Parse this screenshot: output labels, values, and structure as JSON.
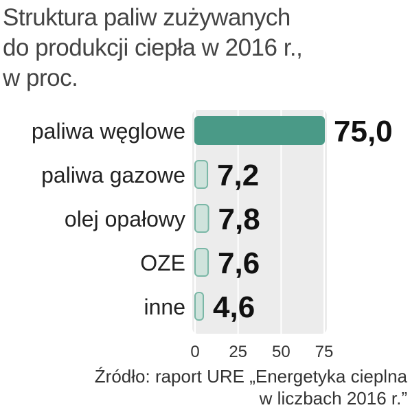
{
  "title_lines": [
    "Struktura paliw zużywanych",
    "do produkcji ciepła w 2016 r.,",
    "w proc."
  ],
  "source_lines": [
    "Źródło: raport URE „Energetyka cieplna",
    "w liczbach 2016 r.”"
  ],
  "colors": {
    "highlight_bar": "#4a9a87",
    "bar": "#cfe3dc",
    "bar_stroke": "#7ab7a6",
    "panel": "#ececec",
    "grid": "#ffffff",
    "text": "#222222"
  },
  "chart_data": {
    "type": "bar",
    "orientation": "horizontal",
    "title": "Struktura paliw zużywanych do produkcji ciepła w 2016 r., w proc.",
    "categories": [
      "paliwa węglowe",
      "paliwa gazowe",
      "olej opałowy",
      "OZE",
      "inne"
    ],
    "values": [
      75.0,
      7.2,
      7.8,
      7.6,
      4.6
    ],
    "value_labels": [
      "75,0",
      "7,2",
      "7,8",
      "7,6",
      "4,6"
    ],
    "highlight_index": 0,
    "xlim": [
      0,
      75
    ],
    "xticks": [
      0,
      25,
      50,
      75
    ],
    "xtick_labels": [
      "0",
      "25",
      "50",
      "75"
    ],
    "xlabel": "",
    "ylabel": "",
    "grid": true,
    "legend": "none"
  }
}
